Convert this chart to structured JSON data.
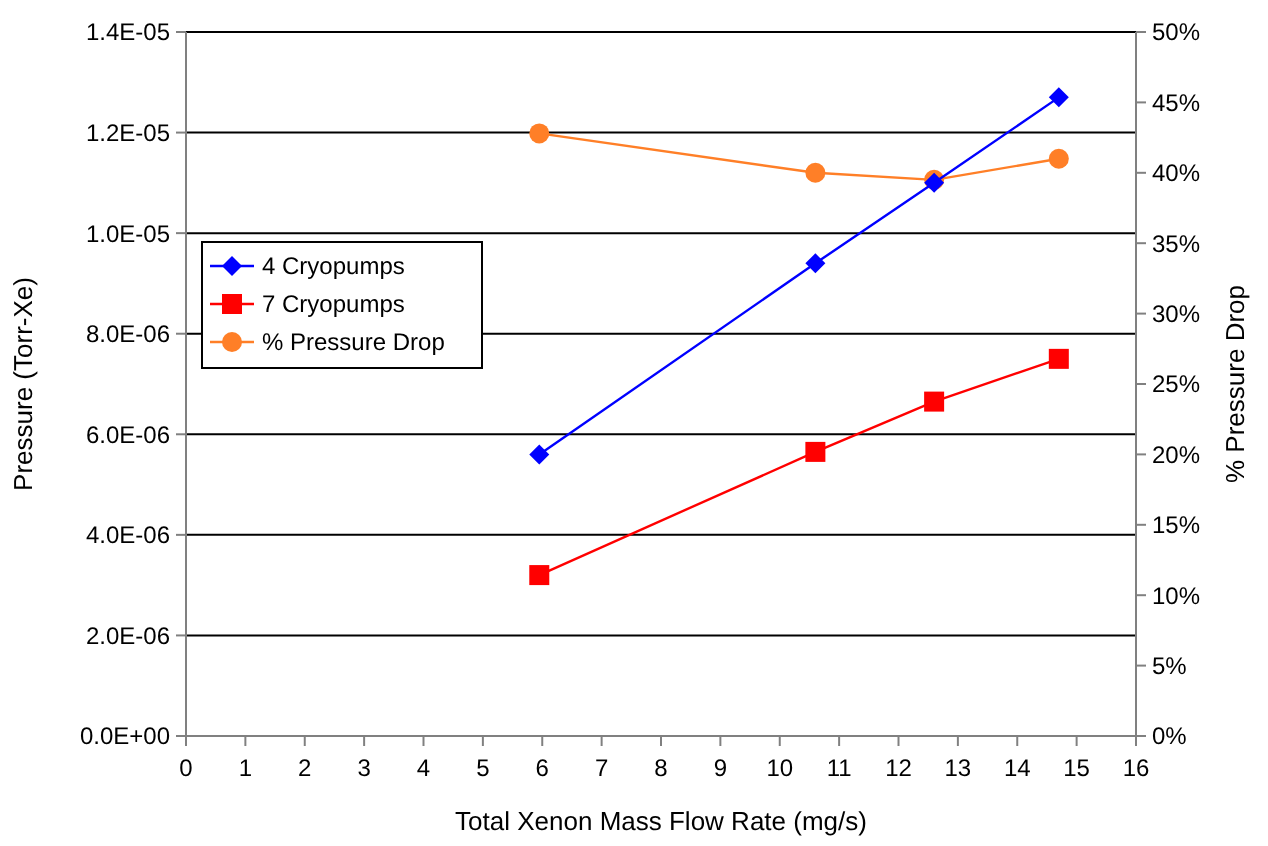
{
  "chart_data": {
    "type": "line",
    "xlabel": "Total Xenon Mass Flow Rate (mg/s)",
    "ylabel": "Pressure (Torr-Xe)",
    "y2label": "% Pressure Drop",
    "x": [
      5.95,
      10.6,
      12.6,
      14.7
    ],
    "xlim": [
      0,
      16
    ],
    "xticks": [
      0,
      1,
      2,
      3,
      4,
      5,
      6,
      7,
      8,
      9,
      10,
      11,
      12,
      13,
      14,
      15,
      16
    ],
    "ylim": [
      0,
      1.4e-05
    ],
    "yticks": [
      {
        "value": 0,
        "label": "0.0E+00"
      },
      {
        "value": 2e-06,
        "label": "2.0E-06"
      },
      {
        "value": 4e-06,
        "label": "4.0E-06"
      },
      {
        "value": 6e-06,
        "label": "6.0E-06"
      },
      {
        "value": 8e-06,
        "label": "8.0E-06"
      },
      {
        "value": 1e-05,
        "label": "1.0E-05"
      },
      {
        "value": 1.2e-05,
        "label": "1.2E-05"
      },
      {
        "value": 1.4e-05,
        "label": "1.4E-05"
      }
    ],
    "y2lim": [
      0,
      50
    ],
    "y2ticks": [
      {
        "value": 0,
        "label": "0%"
      },
      {
        "value": 5,
        "label": "5%"
      },
      {
        "value": 10,
        "label": "10%"
      },
      {
        "value": 15,
        "label": "15%"
      },
      {
        "value": 20,
        "label": "20%"
      },
      {
        "value": 25,
        "label": "25%"
      },
      {
        "value": 30,
        "label": "30%"
      },
      {
        "value": 35,
        "label": "35%"
      },
      {
        "value": 40,
        "label": "40%"
      },
      {
        "value": 45,
        "label": "45%"
      },
      {
        "value": 50,
        "label": "50%"
      }
    ],
    "grid": "y",
    "legend": "left",
    "series": [
      {
        "name": "4 Cryopumps",
        "color": "#0000ff",
        "marker": "diamond",
        "values": [
          5.6e-06,
          9.4e-06,
          1.1e-05,
          1.27e-05
        ]
      },
      {
        "name": "7 Cryopumps",
        "color": "#ff0000",
        "marker": "square",
        "values": [
          3.2e-06,
          5.65e-06,
          6.65e-06,
          7.5e-06
        ]
      },
      {
        "name": "% Pressure Drop",
        "color": "#ff7f27",
        "marker": "circle",
        "axis": "y2",
        "values": [
          42.8,
          40.0,
          39.5,
          41.0
        ]
      }
    ]
  }
}
